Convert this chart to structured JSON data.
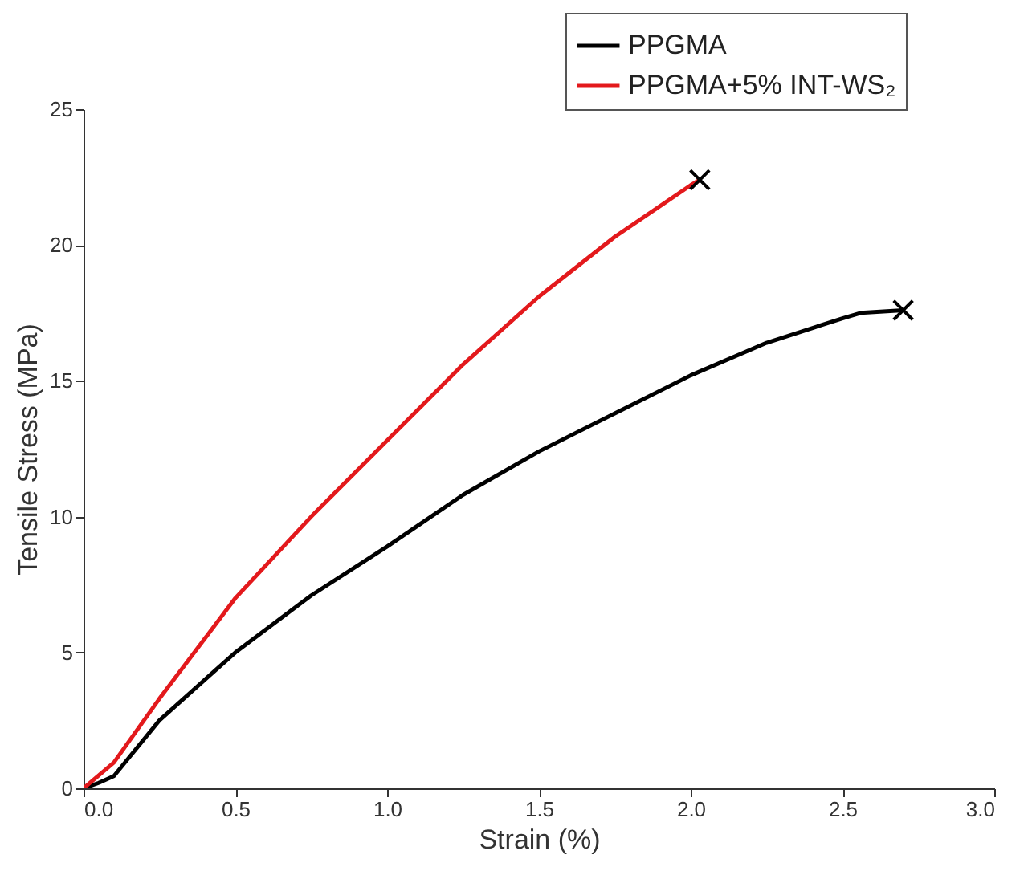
{
  "chart_data": {
    "type": "line",
    "xlabel": "Strain (%)",
    "ylabel": "Tensile Stress (MPa)",
    "xlim": [
      0,
      3
    ],
    "ylim": [
      0,
      25
    ],
    "xticks": [
      {
        "value": 0,
        "label": "0.0"
      },
      0.5,
      {
        "value": 1,
        "label": "1.0"
      },
      1.5,
      {
        "value": 2,
        "label": "2.0"
      },
      2.5,
      {
        "value": 3,
        "label": "3.0"
      }
    ],
    "yticks": [
      0,
      5,
      10,
      15,
      20,
      25
    ],
    "grid": false,
    "legend": "top right",
    "line_style": "solid",
    "series": [
      {
        "name": "PPGMA",
        "color": "#000000",
        "x": [
          0,
          0.05,
          0.1,
          0.25,
          0.5,
          0.75,
          1.0,
          1.25,
          1.5,
          1.75,
          2.0,
          2.25,
          2.5,
          2.56,
          2.7
        ],
        "values": [
          0,
          0.2,
          0.45,
          2.5,
          5.0,
          7.1,
          8.9,
          10.8,
          12.4,
          13.8,
          15.2,
          16.4,
          17.3,
          17.5,
          17.6
        ]
      },
      {
        "name": "PPGMA+5% INT-WS₂",
        "color": "#e3191c",
        "x": [
          0,
          0.1,
          0.25,
          0.5,
          0.75,
          1.0,
          1.25,
          1.5,
          1.75,
          2.0,
          2.03
        ],
        "values": [
          0,
          0.95,
          3.3,
          7.0,
          10.0,
          12.8,
          15.6,
          18.1,
          20.3,
          22.2,
          22.4
        ]
      },
      {
        "type": "scatter",
        "marker": "cross",
        "color": "#000000",
        "x": [
          2.7,
          2.03
        ],
        "values": [
          17.6,
          22.4
        ]
      }
    ]
  }
}
